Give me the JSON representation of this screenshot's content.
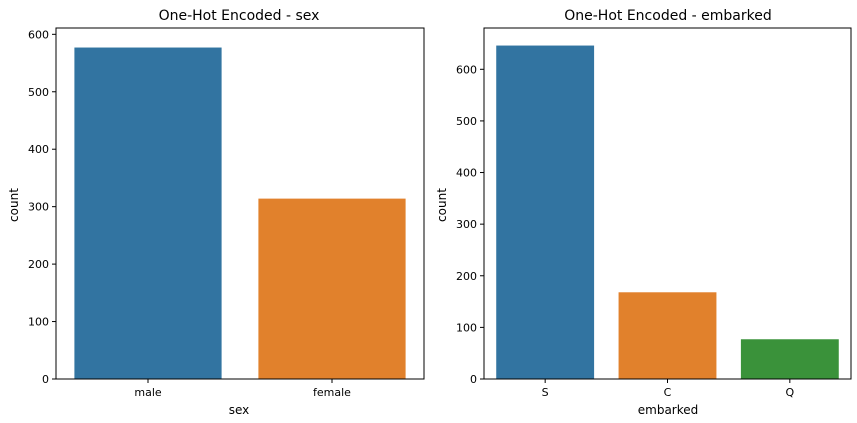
{
  "chart_data": [
    {
      "type": "bar",
      "title": "One-Hot Encoded - sex",
      "xlabel": "sex",
      "ylabel": "count",
      "categories": [
        "male",
        "female"
      ],
      "values": [
        577,
        314
      ],
      "colors": [
        "#3274a1",
        "#e1812c"
      ],
      "ylim": [
        0,
        611
      ],
      "yticks": [
        0,
        100,
        200,
        300,
        400,
        500,
        600
      ],
      "grid": false
    },
    {
      "type": "bar",
      "title": "One-Hot Encoded - embarked",
      "xlabel": "embarked",
      "ylabel": "count",
      "categories": [
        "S",
        "C",
        "Q"
      ],
      "values": [
        646,
        168,
        77
      ],
      "colors": [
        "#3274a1",
        "#e1812c",
        "#3a923a"
      ],
      "ylim": [
        0,
        680
      ],
      "yticks": [
        0,
        100,
        200,
        300,
        400,
        500,
        600
      ],
      "grid": false
    }
  ]
}
